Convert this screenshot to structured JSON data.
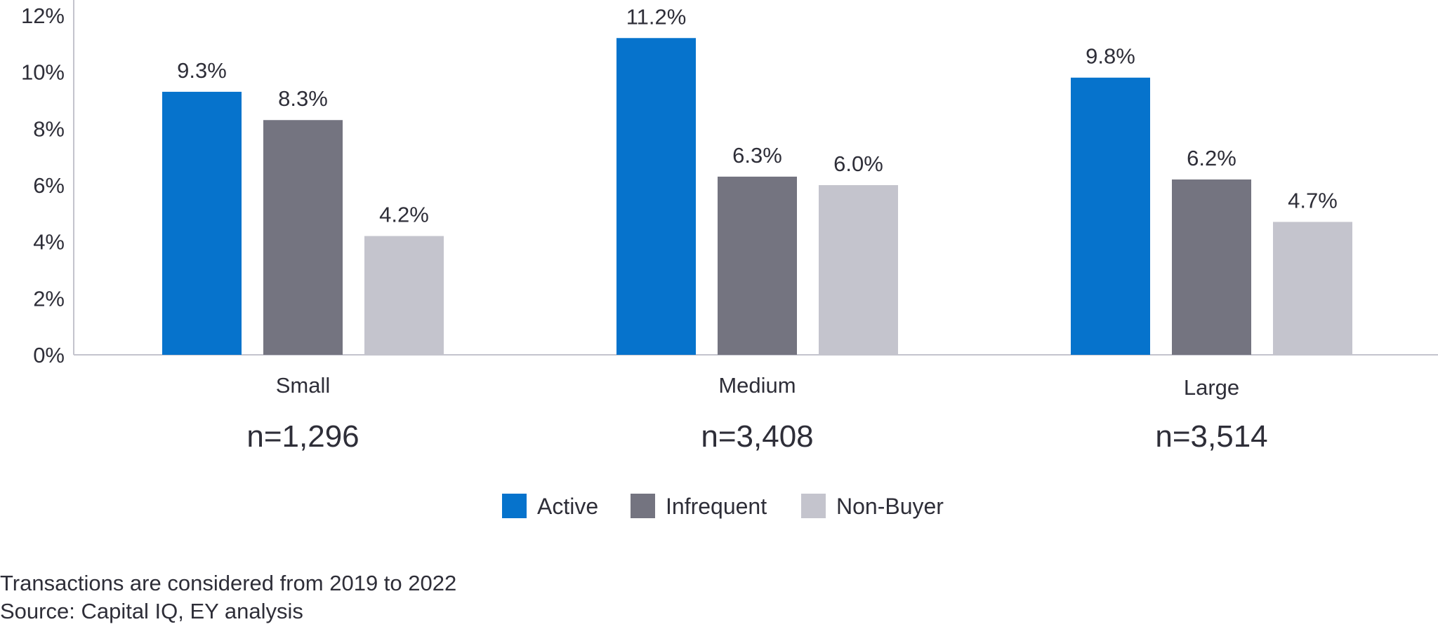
{
  "chart_data": {
    "type": "bar",
    "categories": [
      "Small",
      "Medium",
      "Large"
    ],
    "category_counts": [
      "n=1,296",
      "n=3,408",
      "n=3,514"
    ],
    "series": [
      {
        "name": "Active",
        "color": "#0673cc",
        "values": [
          9.3,
          11.2,
          9.8
        ],
        "labels": [
          "9.3%",
          "11.2%",
          "9.8%"
        ]
      },
      {
        "name": "Infrequent",
        "color": "#747480",
        "values": [
          8.3,
          6.3,
          6.2
        ],
        "labels": [
          "8.3%",
          "6.3%",
          "6.2%"
        ]
      },
      {
        "name": "Non-Buyer",
        "color": "#c4c4cd",
        "values": [
          4.2,
          6.0,
          4.7
        ],
        "labels": [
          "4.2%",
          "6.0%",
          "4.7%"
        ]
      }
    ],
    "yticks": [
      "0%",
      "2%",
      "4%",
      "6%",
      "8%",
      "10%",
      "12%"
    ],
    "ylim": [
      0,
      12
    ],
    "legend_position": "bottom-center",
    "grid": false
  },
  "notes": {
    "line1": "Transactions are considered from 2019 to 2022",
    "line2": "Source: Capital IQ, EY analysis"
  }
}
